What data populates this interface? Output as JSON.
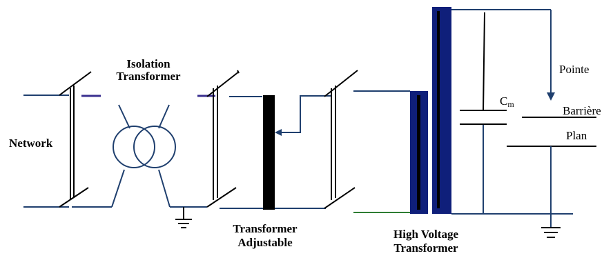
{
  "labels": {
    "network": "Network",
    "isolation_transformer": [
      "Isolation",
      "Transformer"
    ],
    "transformer_adjustable": [
      "Transformer",
      "Adjustable"
    ],
    "high_voltage_transformer": [
      "High Voltage",
      "Transformer"
    ],
    "pointe": "Pointe",
    "barriere": "Barrière",
    "plan": "Plan",
    "cm_main": "C",
    "cm_sub": "m"
  },
  "colors": {
    "wire": "#1f3f6e",
    "hv_core": "#0f1f7a",
    "ground_wire": "#2e7d32",
    "black": "#000000"
  }
}
